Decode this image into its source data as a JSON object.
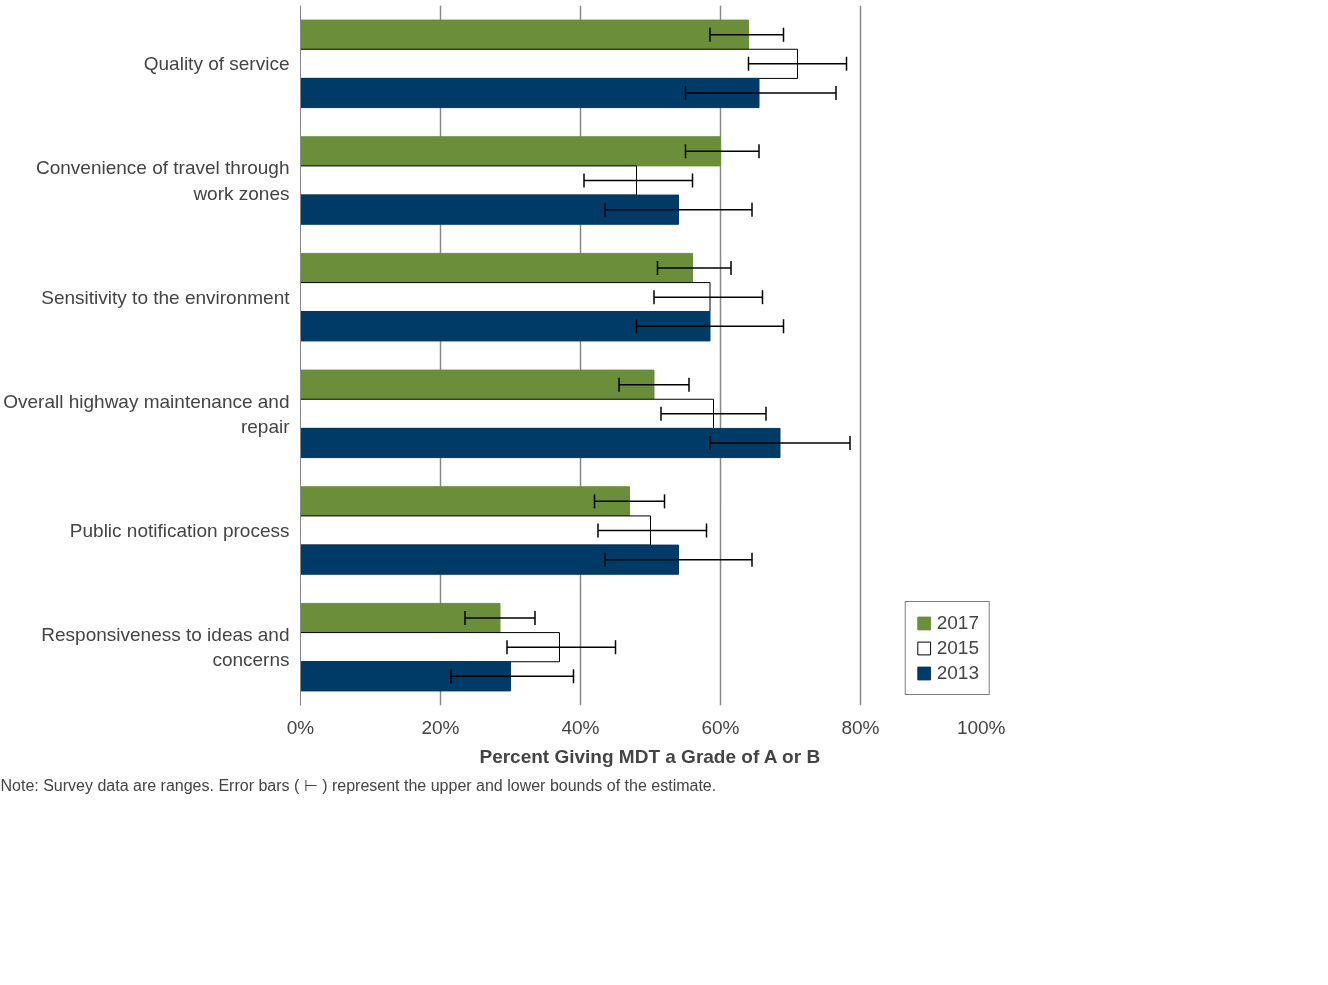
{
  "chart_data": {
    "type": "bar",
    "orientation": "horizontal",
    "xlabel": "Percent Giving MDT a Grade of A or B",
    "categories": [
      "Quality of service",
      "Convenience of travel through work zones",
      "Sensitivity to the environment",
      "Overall highway maintenance and repair",
      "Public notification process",
      "Responsiveness to ideas and concerns"
    ],
    "series": [
      {
        "name": "2017",
        "color": "#6b8e3a",
        "values": [
          64,
          60,
          56,
          50.5,
          47,
          28.5
        ],
        "errors": [
          [
            58.5,
            69
          ],
          [
            55,
            65.5
          ],
          [
            51,
            61.5
          ],
          [
            45.5,
            55.5
          ],
          [
            42,
            52
          ],
          [
            23.5,
            33.5
          ]
        ]
      },
      {
        "name": "2015",
        "color": "#ffffff",
        "values": [
          71,
          48,
          58.5,
          59,
          50,
          37
        ],
        "errors": [
          [
            64,
            78
          ],
          [
            40.5,
            56
          ],
          [
            50.5,
            66
          ],
          [
            51.5,
            66.5
          ],
          [
            42.5,
            58
          ],
          [
            29.5,
            45
          ]
        ]
      },
      {
        "name": "2013",
        "color": "#003a66",
        "values": [
          65.5,
          54,
          58.5,
          68.5,
          54,
          30
        ],
        "errors": [
          [
            55,
            76.5
          ],
          [
            43.5,
            64.5
          ],
          [
            48,
            69
          ],
          [
            58.5,
            78.5
          ],
          [
            43.5,
            64.5
          ],
          [
            21.5,
            39
          ]
        ]
      }
    ],
    "xlim": [
      0,
      100
    ],
    "xticks": [
      {
        "value": 0,
        "label": "0%"
      },
      {
        "value": 20,
        "label": "20%"
      },
      {
        "value": 40,
        "label": "40%"
      },
      {
        "value": 60,
        "label": "60%"
      },
      {
        "value": 80,
        "label": "80%"
      },
      {
        "value": 100,
        "label": "100%"
      }
    ],
    "grid": "x",
    "legend": "bottom right",
    "annotations": [
      "Note: Survey data are ranges. Error bars ( ⊢ ) represent the upper and lower bounds of the estimate."
    ]
  }
}
